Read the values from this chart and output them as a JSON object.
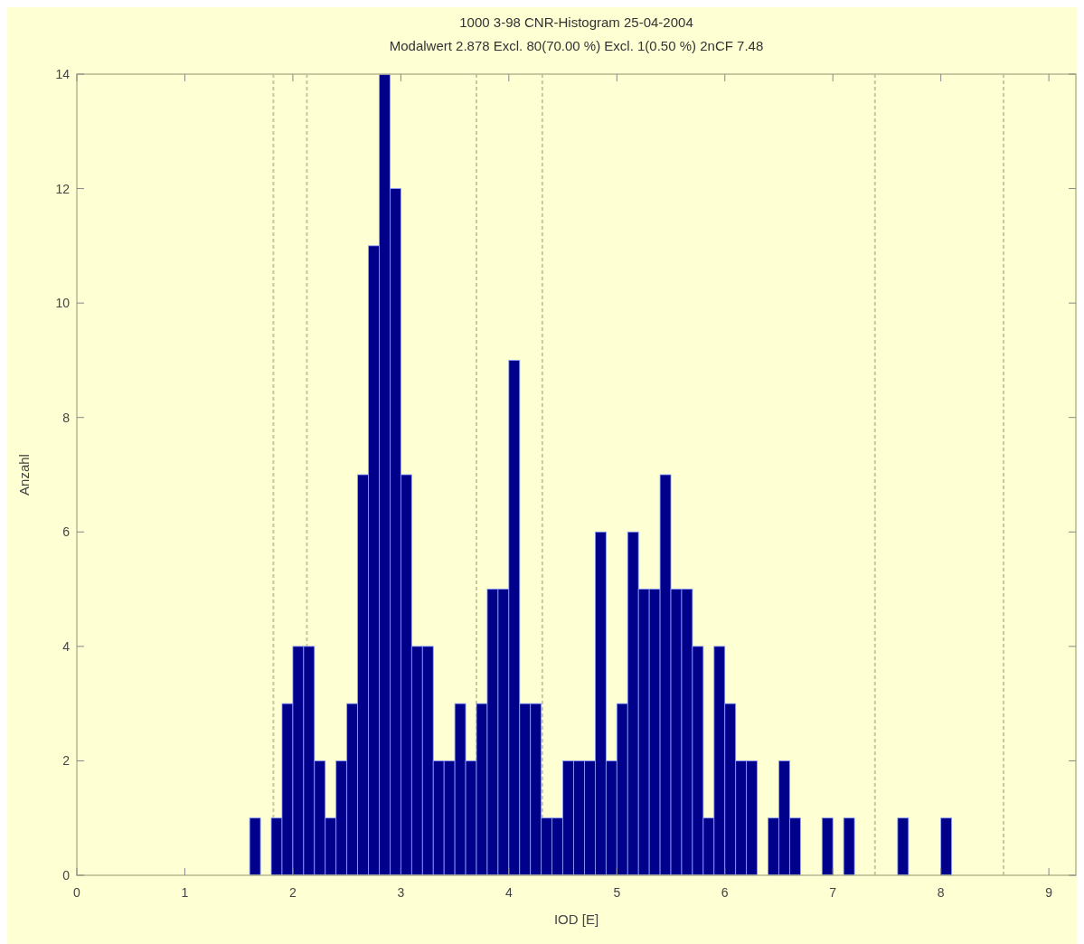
{
  "chart_data": {
    "type": "histogram",
    "title": "1000 3-98 CNR-Histogram 25-04-2004",
    "subtitle": "Modalwert 2.878 Excl. 80(70.00 %) Excl. 1(0.50 %) 2nCF 7.48",
    "xlabel": "IOD [E]",
    "ylabel": "Anzahl",
    "color": "#00008b",
    "bins": [
      1.6,
      1.7,
      1.8,
      1.9,
      2.0,
      2.1,
      2.2,
      2.3,
      2.4,
      2.5,
      2.6,
      2.7,
      2.8,
      2.9,
      3.0,
      3.1,
      3.2,
      3.3,
      3.4,
      3.5,
      3.6,
      3.7,
      3.8,
      3.9,
      4.0,
      4.1,
      4.2,
      4.3,
      4.4,
      4.5,
      4.6,
      4.7,
      4.8,
      4.9,
      5.0,
      5.1,
      5.2,
      5.3,
      5.4,
      5.5,
      5.6,
      5.7,
      5.8,
      5.9,
      6.0,
      6.1,
      6.2,
      6.3,
      6.4,
      6.5,
      6.6,
      6.7,
      6.8,
      6.9,
      7.0,
      7.1,
      7.2,
      7.3,
      7.4,
      7.5,
      7.6,
      7.7,
      7.8,
      7.9,
      8.0,
      8.1
    ],
    "values": [
      1,
      0,
      1,
      3,
      4,
      4,
      2,
      1,
      2,
      3,
      7,
      11,
      14,
      12,
      7,
      4,
      4,
      2,
      2,
      3,
      2,
      3,
      5,
      5,
      9,
      3,
      3,
      1,
      1,
      2,
      2,
      2,
      6,
      2,
      3,
      6,
      5,
      5,
      7,
      5,
      5,
      4,
      1,
      4,
      3,
      2,
      2,
      0,
      1,
      2,
      1,
      0,
      0,
      1,
      0,
      1,
      0,
      0,
      0,
      0,
      1,
      0,
      0,
      0,
      1
    ],
    "xlim": [
      0,
      9.25
    ],
    "xticks": [
      0,
      1,
      2,
      3,
      4,
      5,
      6,
      7,
      8,
      9
    ],
    "ylim": [
      0,
      14
    ],
    "yticks": [
      0,
      2,
      4,
      6,
      8,
      10,
      12,
      14
    ],
    "ref_lines": [
      {
        "axis": "x",
        "value": 1.82,
        "color": "#c8c8a0",
        "line_style": "dashed"
      },
      {
        "axis": "x",
        "value": 2.13,
        "color": "#c8c8a0",
        "line_style": "dashed"
      },
      {
        "axis": "x",
        "value": 3.7,
        "color": "#c8c8a0",
        "line_style": "dashed"
      },
      {
        "axis": "x",
        "value": 4.31,
        "color": "#c8c8a0",
        "line_style": "dashed"
      },
      {
        "axis": "x",
        "value": 7.39,
        "color": "#c8c8a0",
        "line_style": "dashed"
      },
      {
        "axis": "x",
        "value": 8.58,
        "color": "#c8c8a0",
        "line_style": "dashed"
      }
    ]
  }
}
